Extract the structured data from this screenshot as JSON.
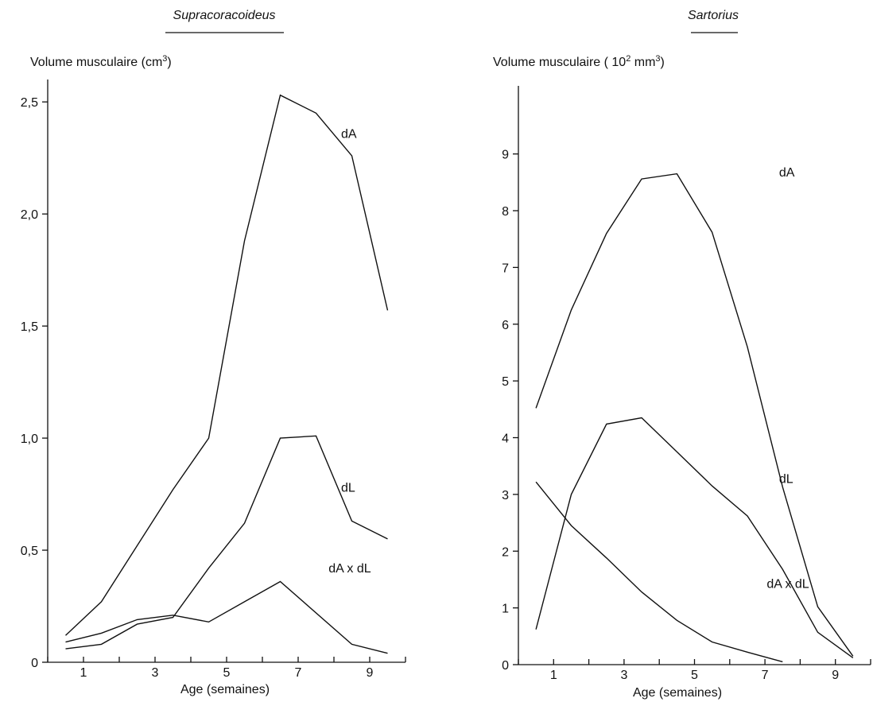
{
  "chart_data": [
    {
      "type": "line",
      "title": "Supracoracoideus",
      "ylabel": "Volume musculaire (cm",
      "ylabel_sup": "3",
      "ylabel_end": ")",
      "xlabel": "Age (semaines)",
      "xlim": [
        0,
        10
      ],
      "ylim": [
        0,
        2.6
      ],
      "x_ticks": [
        1,
        3,
        5,
        7,
        9
      ],
      "y_ticks": [
        {
          "value": 0,
          "label": "0"
        },
        {
          "value": 0.5,
          "label": "0,5"
        },
        {
          "value": 1.0,
          "label": "1,0"
        },
        {
          "value": 1.5,
          "label": "1,5"
        },
        {
          "value": 2.0,
          "label": "2,0"
        },
        {
          "value": 2.5,
          "label": "2,5"
        }
      ],
      "x": [
        0.5,
        1.5,
        2.5,
        3.5,
        4.5,
        5.5,
        6.5,
        7.5,
        8.5,
        9.5
      ],
      "series": [
        {
          "name": "dA",
          "values": [
            0.12,
            0.27,
            0.52,
            0.77,
            1.0,
            1.88,
            2.53,
            2.45,
            2.26,
            1.57
          ],
          "label_at": [
            8.2,
            2.34
          ]
        },
        {
          "name": "dL",
          "values": [
            0.06,
            0.08,
            0.17,
            0.2,
            0.42,
            0.62,
            1.0,
            1.01,
            0.63,
            0.55
          ],
          "label_at": [
            8.2,
            0.76
          ]
        },
        {
          "name": "dA x dL",
          "values": [
            0.09,
            0.13,
            0.19,
            0.21,
            0.18,
            0.27,
            0.36,
            null,
            0.08,
            0.04
          ],
          "label_at": [
            7.85,
            0.4
          ]
        }
      ]
    },
    {
      "type": "line",
      "title": "Sartorius",
      "ylabel": "Volume musculaire ( 10",
      "ylabel_sup": "2",
      "ylabel_mid": " mm",
      "ylabel_sup2": "3",
      "ylabel_end": ")",
      "xlabel": "Age (semaines)",
      "xlim": [
        0,
        10
      ],
      "ylim": [
        0,
        10.2
      ],
      "x_ticks": [
        1,
        3,
        5,
        7,
        9
      ],
      "y_ticks": [
        {
          "value": 0,
          "label": "0"
        },
        {
          "value": 1,
          "label": "1"
        },
        {
          "value": 2,
          "label": "2"
        },
        {
          "value": 3,
          "label": "3"
        },
        {
          "value": 4,
          "label": "4"
        },
        {
          "value": 5,
          "label": "5"
        },
        {
          "value": 6,
          "label": "6"
        },
        {
          "value": 7,
          "label": "7"
        },
        {
          "value": 8,
          "label": "8"
        },
        {
          "value": 9,
          "label": "9"
        }
      ],
      "x": [
        0.5,
        1.5,
        2.5,
        3.5,
        4.5,
        5.5,
        6.5,
        7.5,
        8.5,
        9.5
      ],
      "series": [
        {
          "name": "dA",
          "values": [
            4.52,
            6.25,
            7.6,
            8.56,
            8.65,
            7.62,
            5.6,
            3.13,
            1.02,
            0.15
          ],
          "label_at": [
            7.4,
            8.6
          ]
        },
        {
          "name": "dL",
          "values": [
            0.62,
            3.0,
            4.24,
            4.35,
            3.75,
            3.15,
            2.62,
            1.68,
            0.57,
            0.12
          ],
          "label_at": [
            7.4,
            3.2
          ]
        },
        {
          "name": "dA x dL",
          "values": [
            3.22,
            2.45,
            1.88,
            1.28,
            0.78,
            0.4,
            0.22,
            0.05,
            null,
            null
          ],
          "label_at": [
            7.05,
            1.35
          ]
        }
      ]
    }
  ]
}
